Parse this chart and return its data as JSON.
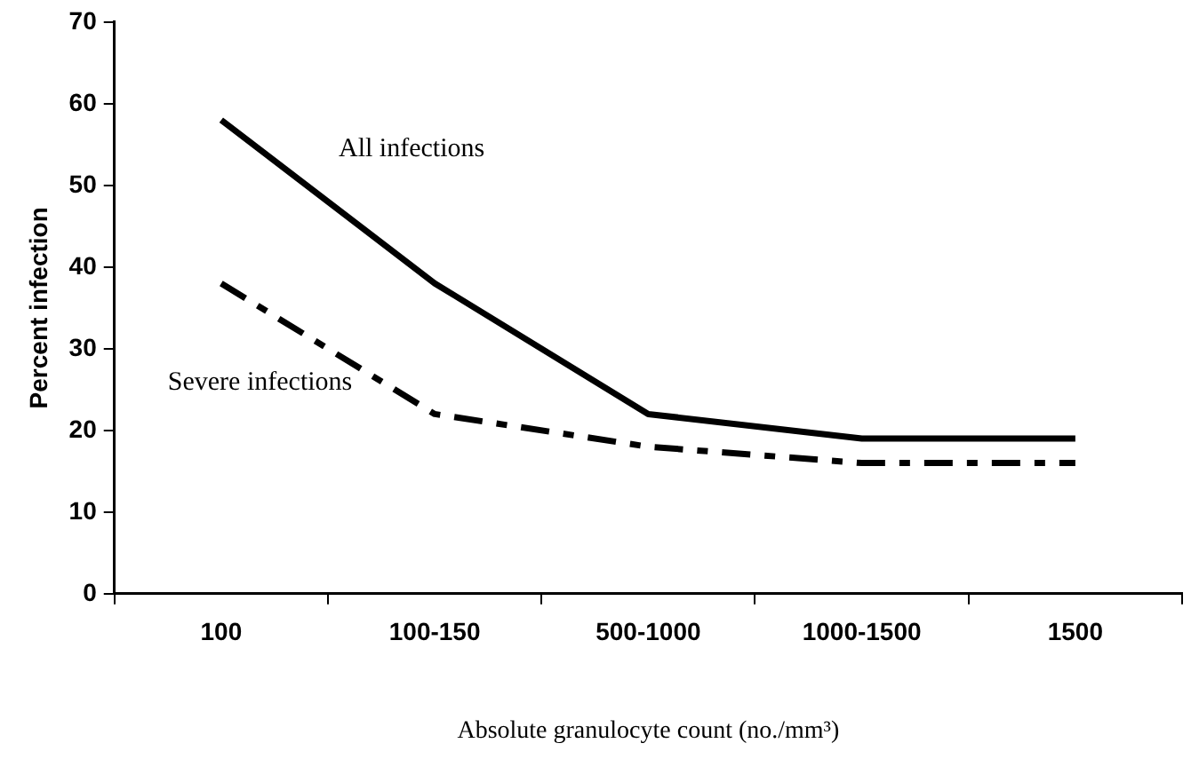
{
  "chart_data": {
    "type": "line",
    "xlabel": "Absolute granulocyte count (no./mm³)",
    "ylabel": "Percent infection",
    "categories": [
      "100",
      "100-150",
      "500-1000",
      "1000-1500",
      "1500"
    ],
    "series": [
      {
        "name": "All infections",
        "color": "#000000",
        "line_style": "solid",
        "values": [
          58,
          38,
          22,
          19,
          19
        ]
      },
      {
        "name": "Severe infections",
        "color": "#000000",
        "line_style": "dashed",
        "values": [
          38,
          22,
          18,
          16,
          16
        ]
      }
    ],
    "ylim": [
      0,
      70
    ],
    "yticks": [
      0,
      10,
      20,
      30,
      40,
      50,
      60,
      70
    ],
    "grid": false,
    "legend": false,
    "marker": "none"
  }
}
